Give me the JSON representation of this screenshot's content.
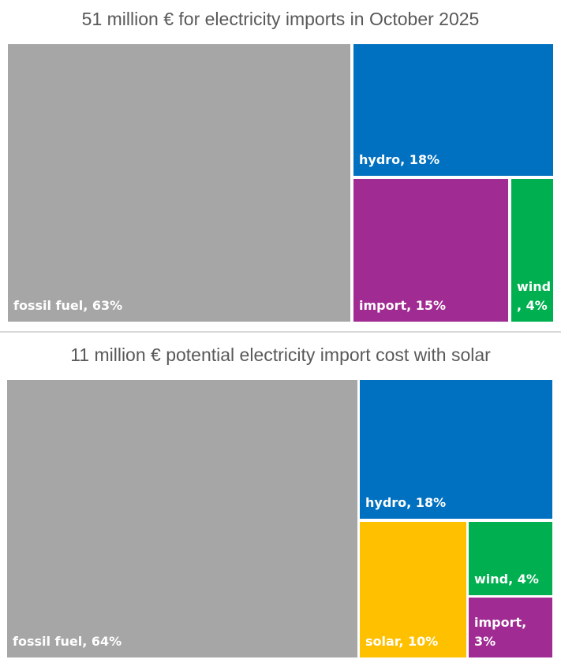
{
  "colors": {
    "fossil": "#a6a6a6",
    "hydro": "#0070c0",
    "import": "#a02b93",
    "wind": "#00b050",
    "solar": "#ffc000"
  },
  "chart_data": [
    {
      "type": "treemap",
      "title": "51 million € for electricity imports in October 2025",
      "items": [
        {
          "name": "fossil fuel",
          "value": 63,
          "label": "fossil fuel, 63%",
          "color": "#a6a6a6"
        },
        {
          "name": "hydro",
          "value": 18,
          "label": "hydro, 18%",
          "color": "#0070c0"
        },
        {
          "name": "import",
          "value": 15,
          "label": "import, 15%",
          "color": "#a02b93"
        },
        {
          "name": "wind",
          "value": 4,
          "label": "wind, 4%",
          "label_lines": [
            "wind",
            ", 4%"
          ],
          "color": "#00b050"
        }
      ]
    },
    {
      "type": "treemap",
      "title": "11 million € potential electricity import cost with solar",
      "items": [
        {
          "name": "fossil fuel",
          "value": 64,
          "label": "fossil fuel, 64%",
          "color": "#a6a6a6"
        },
        {
          "name": "hydro",
          "value": 18,
          "label": "hydro, 18%",
          "color": "#0070c0"
        },
        {
          "name": "solar",
          "value": 10,
          "label": "solar, 10%",
          "color": "#ffc000"
        },
        {
          "name": "wind",
          "value": 4,
          "label": "wind, 4%",
          "color": "#00b050"
        },
        {
          "name": "import",
          "value": 3,
          "label": "import, 3%",
          "color": "#a02b93"
        }
      ]
    }
  ]
}
